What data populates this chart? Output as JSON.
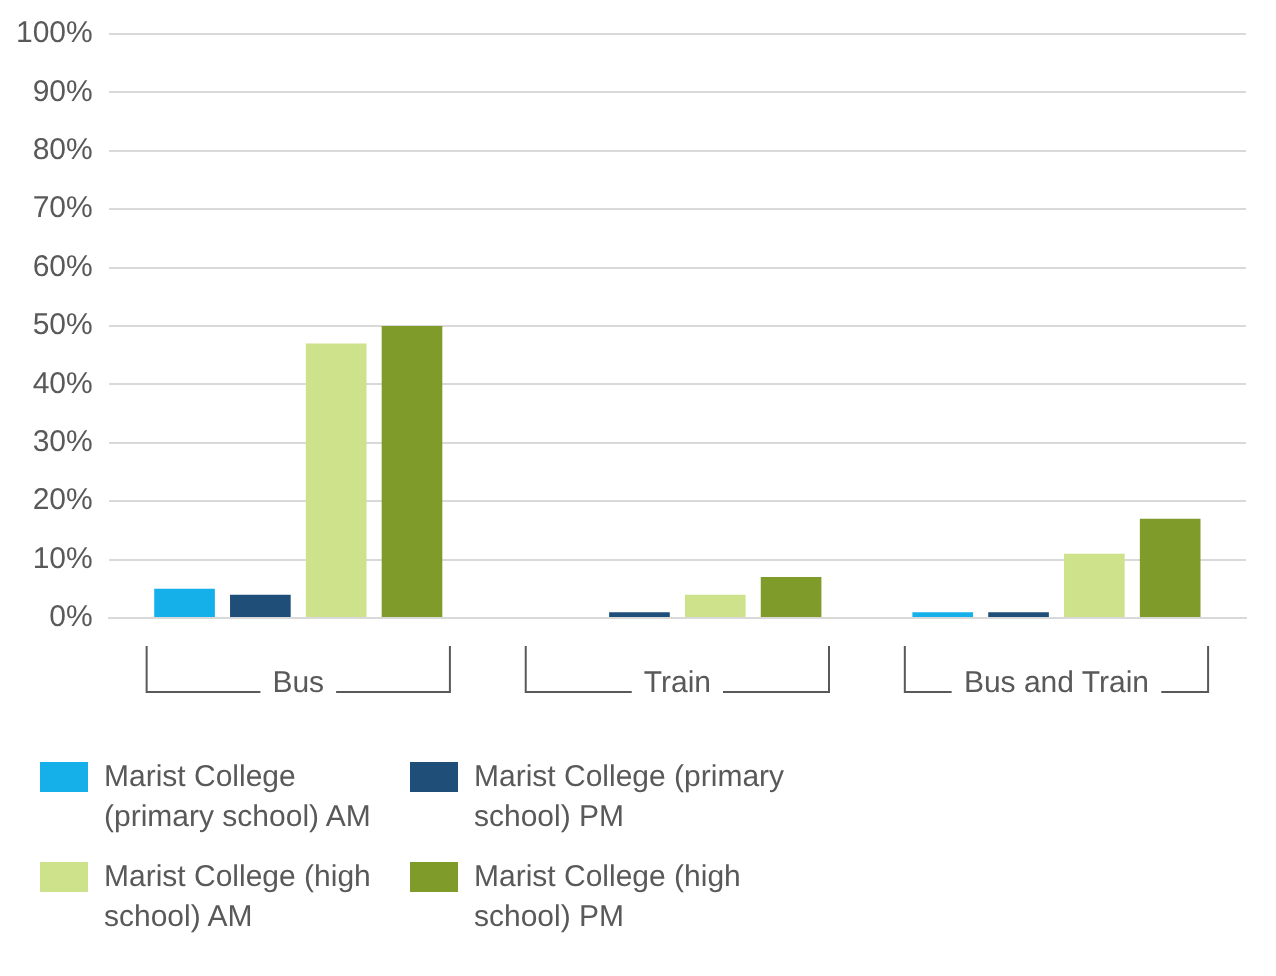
{
  "chart_data": {
    "type": "bar",
    "categories": [
      "Bus",
      "Train",
      "Bus and Train"
    ],
    "series": [
      {
        "name": "Marist College (primary school) AM",
        "color": "#15b0ea",
        "values": [
          5,
          0,
          1
        ]
      },
      {
        "name": "Marist College (primary school) PM",
        "color": "#1f4e79",
        "values": [
          4,
          1,
          1
        ]
      },
      {
        "name": "Marist College (high school) AM",
        "color": "#cde28b",
        "values": [
          47,
          4,
          11
        ]
      },
      {
        "name": "Marist College (high school) PM",
        "color": "#7f9c2a",
        "values": [
          50,
          7,
          17
        ]
      }
    ],
    "ylim": [
      0,
      100
    ],
    "yticks": [
      {
        "value": 0,
        "label": "0%"
      },
      {
        "value": 10,
        "label": "10%"
      },
      {
        "value": 20,
        "label": "20%"
      },
      {
        "value": 30,
        "label": "30%"
      },
      {
        "value": 40,
        "label": "40%"
      },
      {
        "value": 50,
        "label": "50%"
      },
      {
        "value": 60,
        "label": "60%"
      },
      {
        "value": 70,
        "label": "70%"
      },
      {
        "value": 80,
        "label": "80%"
      },
      {
        "value": 90,
        "label": "90%"
      },
      {
        "value": 100,
        "label": "100%"
      }
    ],
    "grid": "y",
    "legend": "bottom"
  }
}
